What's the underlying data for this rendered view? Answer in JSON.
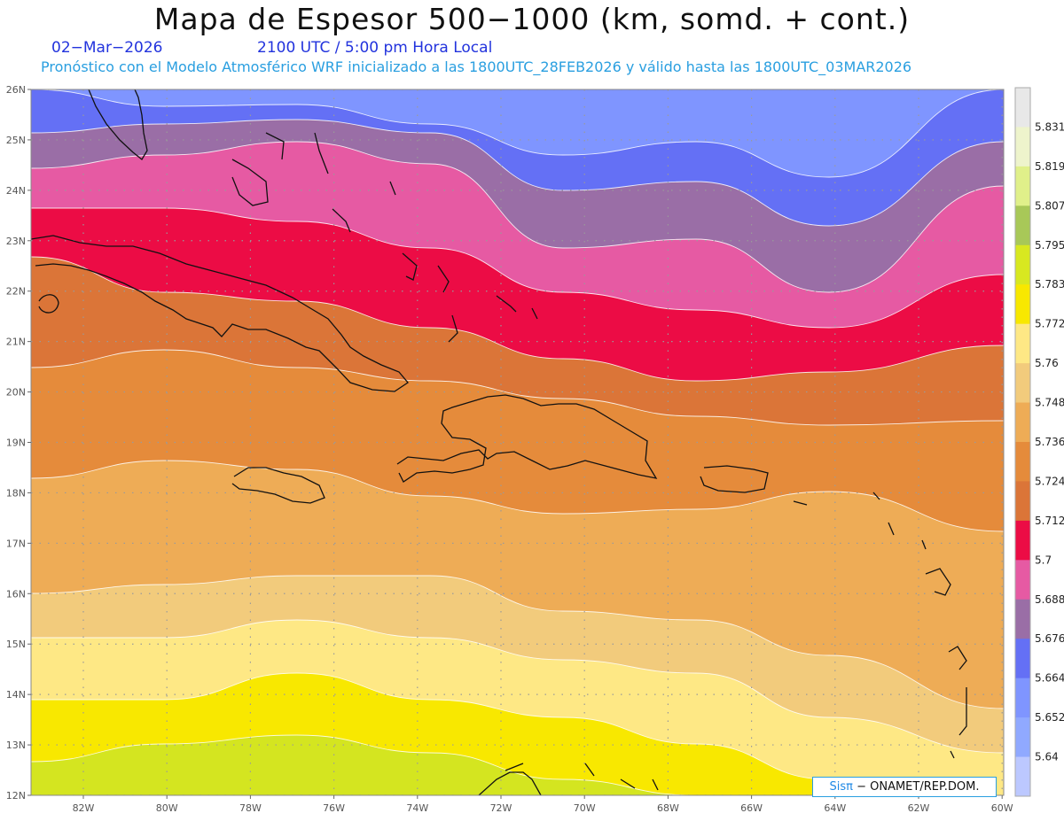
{
  "header": {
    "title": "Mapa de Espesor 500−1000 (km, somd. + cont.)",
    "date": "02−Mar−2026",
    "time": "2100 UTC / 5:00 pm Hora Local",
    "subtitle": "Pronóstico con el Modelo Atmosférico WRF inicializado a las 1800UTC_28FEB2026 y válido hasta las  1800UTC_03MAR2026"
  },
  "map": {
    "lat_labels": [
      "26N",
      "25N",
      "24N",
      "23N",
      "22N",
      "21N",
      "20N",
      "19N",
      "18N",
      "17N",
      "16N",
      "15N",
      "14N",
      "13N",
      "12N"
    ],
    "lon_labels": [
      "82W",
      "80W",
      "78W",
      "76W",
      "74W",
      "72W",
      "70W",
      "68W",
      "66W",
      "64W",
      "62W",
      "60W"
    ],
    "band_colors": [
      "#90a9ff",
      "#7f95ff",
      "#6470f5",
      "#9a6ea6",
      "#e65aa3",
      "#ec0c45",
      "#db7538",
      "#e58b3b",
      "#eeac56",
      "#f2cb7c",
      "#fee885",
      "#f8e800",
      "#d4e520"
    ]
  },
  "colorbar": {
    "labels": [
      "5.831",
      "5.819",
      "5.807",
      "5.795",
      "5.783",
      "5.772",
      "5.76",
      "5.748",
      "5.736",
      "5.724",
      "5.712",
      "5.7",
      "5.688",
      "5.676",
      "5.664",
      "5.652",
      "5.64"
    ],
    "colors": [
      "#e8e8e8",
      "#eef4cc",
      "#e0f08a",
      "#a8c858",
      "#d8e820",
      "#f8e800",
      "#fee885",
      "#f2cb7c",
      "#eeac56",
      "#e58b3b",
      "#db7538",
      "#ec0c45",
      "#e65aa3",
      "#9a6ea6",
      "#6470f5",
      "#7f95ff",
      "#90a9ff",
      "#bcc8ff"
    ]
  },
  "credit": {
    "brand": "Sisπ",
    "text": "− ONAMET/REP.DOM."
  }
}
